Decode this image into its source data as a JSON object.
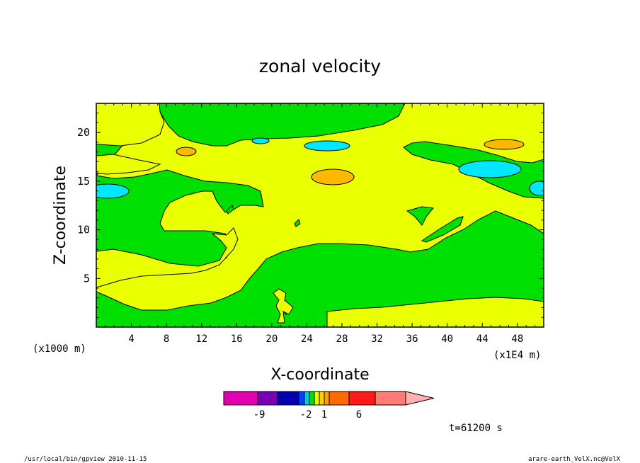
{
  "chart_data": {
    "type": "heatmap",
    "title": "zonal velocity",
    "xlabel": "X-coordinate",
    "ylabel": "Z-coordinate",
    "x_unit_label": "(x1E4 m)",
    "y_unit_label": "(x1000 m)",
    "xlim": [
      0,
      51
    ],
    "ylim": [
      0,
      23
    ],
    "x_ticks": [
      4,
      8,
      12,
      16,
      20,
      24,
      28,
      32,
      36,
      40,
      44,
      48
    ],
    "y_ticks": [
      5,
      10,
      15,
      20
    ],
    "time_label": "t=61200 s",
    "footer_left": "/usr/local/bin/gpview  2010-11-15",
    "footer_right": "arare-earth_VelX.nc@VelX",
    "colorbar": {
      "tick_labels": [
        "-9",
        "-2",
        "1",
        "6"
      ],
      "colors": [
        "#e000b0",
        "#7a00b8",
        "#0000b0",
        "#0040ff",
        "#00c8ff",
        "#00e000",
        "#e8ff00",
        "#ffd000",
        "#ffa000",
        "#ff6a00",
        "#ff1a1a",
        "#ff7c74",
        "#ffb0b0"
      ]
    },
    "region_colors": {
      "green": "#00e000",
      "yellow": "#eaff00",
      "cyan": "#00e8ff",
      "orange": "#ffb800"
    }
  }
}
